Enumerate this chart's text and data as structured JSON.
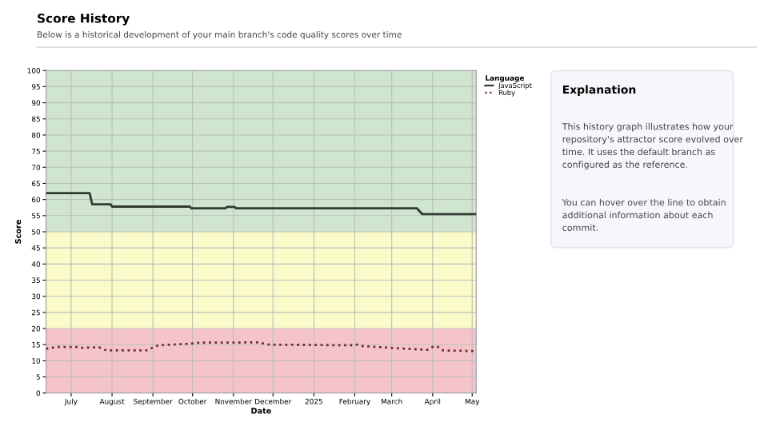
{
  "chart_data": [
    {
      "type": "line",
      "title": "Score History",
      "subtitle": "Below is a historical development of your main branch's code quality scores over time",
      "xlabel": "Date",
      "ylabel": "Score",
      "legend_title": "Language",
      "legend": "top right",
      "grid": true,
      "marker": "none",
      "xlim": [
        "2024-06-12",
        "2025-05-04"
      ],
      "xticks": [
        {
          "value": "2024-07-01",
          "label": "July"
        },
        {
          "value": "2024-08-01",
          "label": "August"
        },
        {
          "value": "2024-09-01",
          "label": "September"
        },
        {
          "value": "2024-10-01",
          "label": "October"
        },
        {
          "value": "2024-11-01",
          "label": "November"
        },
        {
          "value": "2024-12-01",
          "label": "December"
        },
        {
          "value": "2025-01-01",
          "label": "2025"
        },
        {
          "value": "2025-02-01",
          "label": "February"
        },
        {
          "value": "2025-03-01",
          "label": "March"
        },
        {
          "value": "2025-04-01",
          "label": "April"
        },
        {
          "value": "2025-05-01",
          "label": "May"
        }
      ],
      "ylim": [
        0,
        100
      ],
      "yticks": [
        0,
        5,
        10,
        15,
        20,
        25,
        30,
        35,
        40,
        45,
        50,
        55,
        60,
        65,
        70,
        75,
        80,
        85,
        90,
        95,
        100
      ],
      "bands": [
        {
          "axis": "y",
          "from": 0,
          "to": 20,
          "color": "#f5c4cb"
        },
        {
          "axis": "y",
          "from": 20,
          "to": 50,
          "color": "#fbfbc9"
        },
        {
          "axis": "y",
          "from": 50,
          "to": 100,
          "color": "#cfe5cf"
        }
      ],
      "series": [
        {
          "name": "JavaScript",
          "color": "#2f3a30",
          "line_style": "solid",
          "x": [
            "2024-06-12",
            "2024-07-15",
            "2024-07-17",
            "2024-07-31",
            "2024-08-01",
            "2024-09-29",
            "2024-09-30",
            "2024-10-26",
            "2024-10-27",
            "2024-11-02",
            "2024-11-03",
            "2025-03-20",
            "2025-03-24",
            "2025-05-04"
          ],
          "values": [
            62,
            62,
            58.5,
            58.5,
            57.8,
            57.8,
            57.3,
            57.3,
            57.7,
            57.7,
            57.3,
            57.3,
            55.5,
            55.5
          ]
        },
        {
          "name": "Ruby",
          "color": "#6b2b2b",
          "line_style": "dotted",
          "x": [
            "2024-06-12",
            "2024-06-20",
            "2024-07-05",
            "2024-07-08",
            "2024-07-22",
            "2024-07-28",
            "2024-08-27",
            "2024-09-05",
            "2024-09-30",
            "2024-10-05",
            "2024-11-20",
            "2024-11-28",
            "2025-01-31",
            "2025-02-03",
            "2025-02-06",
            "2025-03-08",
            "2025-03-28",
            "2025-04-02",
            "2025-04-05",
            "2025-04-09",
            "2025-05-04"
          ],
          "values": [
            13.7,
            14.3,
            14.3,
            14.0,
            14.2,
            13.2,
            13.2,
            14.8,
            15.3,
            15.6,
            15.7,
            15.0,
            14.8,
            15.0,
            14.6,
            13.8,
            13.4,
            14.5,
            14.3,
            13.2,
            13.0
          ]
        }
      ]
    },
    {
      "type": "other",
      "title": "Explanation",
      "annotations": [
        "This history graph illustrates how your repository's attractor score evolved over time. It uses the default branch as configured as the reference.",
        "You can hover over the line to obtain additional information about each commit."
      ]
    }
  ]
}
